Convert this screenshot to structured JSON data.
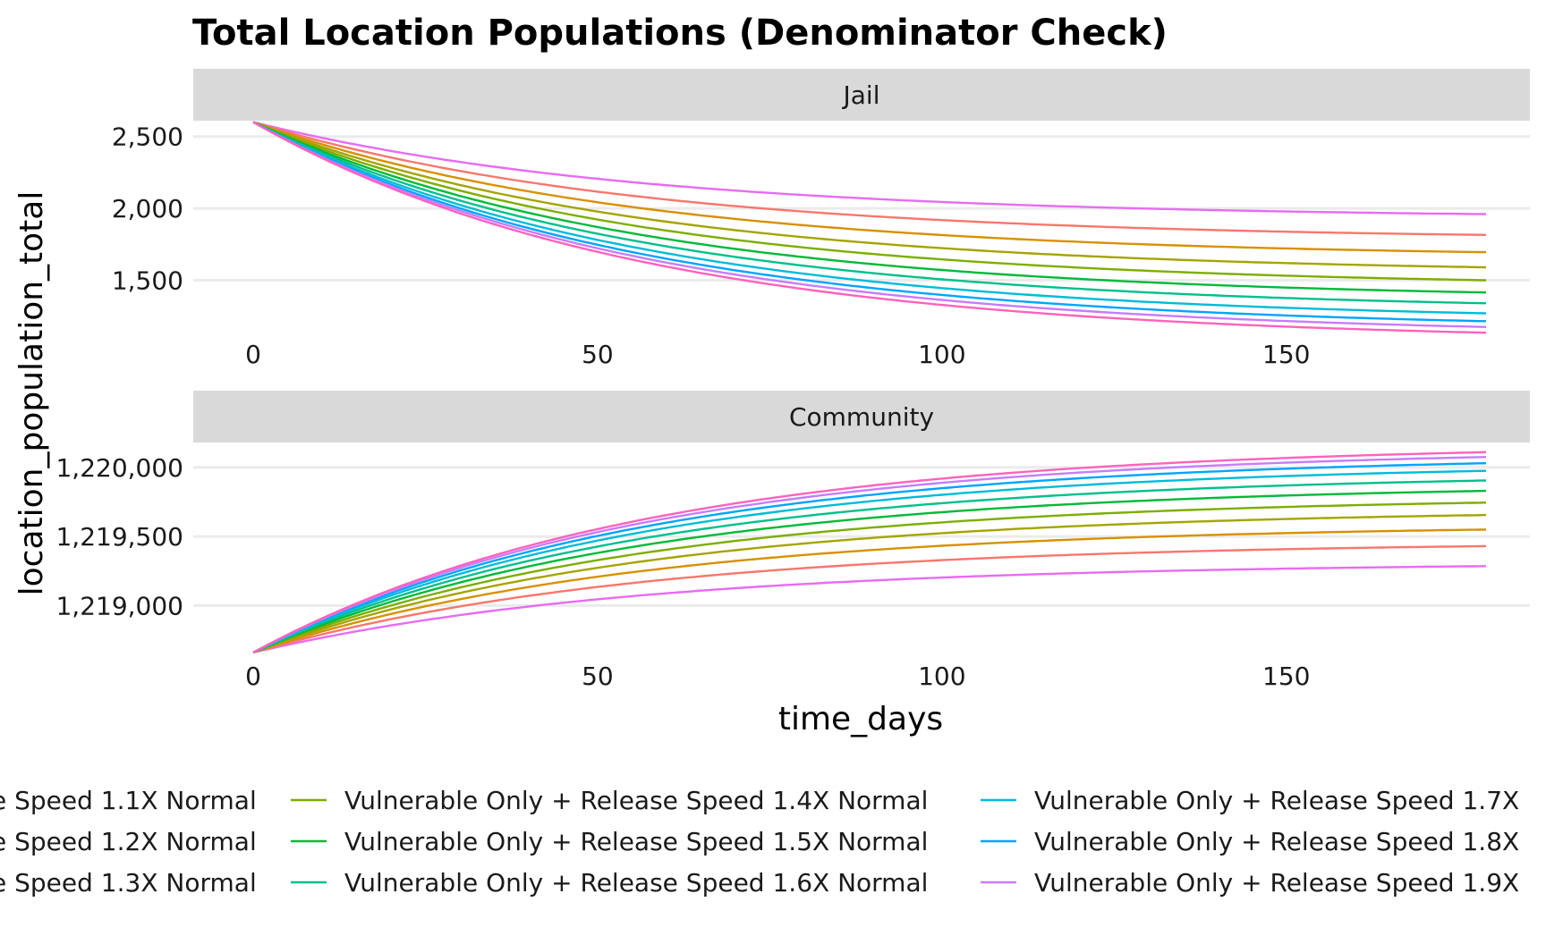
{
  "chart_data": {
    "type": "line",
    "title": "Total Location Populations (Denominator Check)",
    "xlabel": "time_days",
    "ylabel": "location_population_total",
    "x_range": [
      0,
      179
    ],
    "x_ticks": [
      0,
      50,
      100,
      150
    ],
    "x_tick_labels": [
      "0",
      "50",
      "100",
      "150"
    ],
    "grid": "horizontal major gridlines",
    "legend_position": "bottom",
    "facets": [
      {
        "label": "Jail",
        "ylim": [
          1130,
          2610
        ],
        "y_ticks": [
          1500,
          2000,
          2500
        ],
        "y_tick_labels": [
          "1,500",
          "2,000",
          "2,500"
        ],
        "start_value": 2600,
        "series": [
          {
            "key": "s10",
            "end_value": 1960
          },
          {
            "key": "s1",
            "end_value": 1815
          },
          {
            "key": "s2",
            "end_value": 1695
          },
          {
            "key": "s3",
            "end_value": 1590
          },
          {
            "key": "s4",
            "end_value": 1500
          },
          {
            "key": "s5",
            "end_value": 1415
          },
          {
            "key": "s6",
            "end_value": 1340
          },
          {
            "key": "s7",
            "end_value": 1270
          },
          {
            "key": "s8",
            "end_value": 1215
          },
          {
            "key": "s9",
            "end_value": 1175
          },
          {
            "key": "s11",
            "end_value": 1135
          }
        ]
      },
      {
        "label": "Community",
        "ylim": [
          1218640,
          1220180
        ],
        "y_ticks": [
          1219000,
          1219500,
          1220000
        ],
        "y_tick_labels": [
          "1,219,000",
          "1,219,500",
          "1,220,000"
        ],
        "start_value": 1218660,
        "series": [
          {
            "key": "s10",
            "end_value": 1219285
          },
          {
            "key": "s1",
            "end_value": 1219430
          },
          {
            "key": "s2",
            "end_value": 1219550
          },
          {
            "key": "s3",
            "end_value": 1219655
          },
          {
            "key": "s4",
            "end_value": 1219745
          },
          {
            "key": "s5",
            "end_value": 1219830
          },
          {
            "key": "s6",
            "end_value": 1219905
          },
          {
            "key": "s7",
            "end_value": 1219975
          },
          {
            "key": "s8",
            "end_value": 1220030
          },
          {
            "key": "s9",
            "end_value": 1220075
          },
          {
            "key": "s11",
            "end_value": 1220110
          }
        ]
      }
    ],
    "colors": {
      "s1": "#F8766D",
      "s2": "#D89000",
      "s3": "#A3A500",
      "s4": "#7CAE00",
      "s5": "#00BA38",
      "s6": "#00C08B",
      "s7": "#00BCD8",
      "s8": "#00A5FF",
      "s9": "#C77CFF",
      "s10": "#E76BF3",
      "s11": "#FF62BC"
    },
    "legend": [
      {
        "key": "s1",
        "text": "e Speed 1.1X Normal"
      },
      {
        "key": "s2",
        "text": "e Speed 1.2X Normal"
      },
      {
        "key": "s3",
        "text": "e Speed 1.3X Normal"
      },
      {
        "key": "s4",
        "text": "Vulnerable Only + Release Speed 1.4X Normal"
      },
      {
        "key": "s5",
        "text": "Vulnerable Only + Release Speed 1.5X Normal"
      },
      {
        "key": "s6",
        "text": "Vulnerable Only + Release Speed 1.6X Normal"
      },
      {
        "key": "s7",
        "text": "Vulnerable Only + Release Speed 1.7X"
      },
      {
        "key": "s8",
        "text": "Vulnerable Only + Release Speed 1.8X"
      },
      {
        "key": "s9",
        "text": "Vulnerable Only + Release Speed 1.9X"
      }
    ]
  }
}
